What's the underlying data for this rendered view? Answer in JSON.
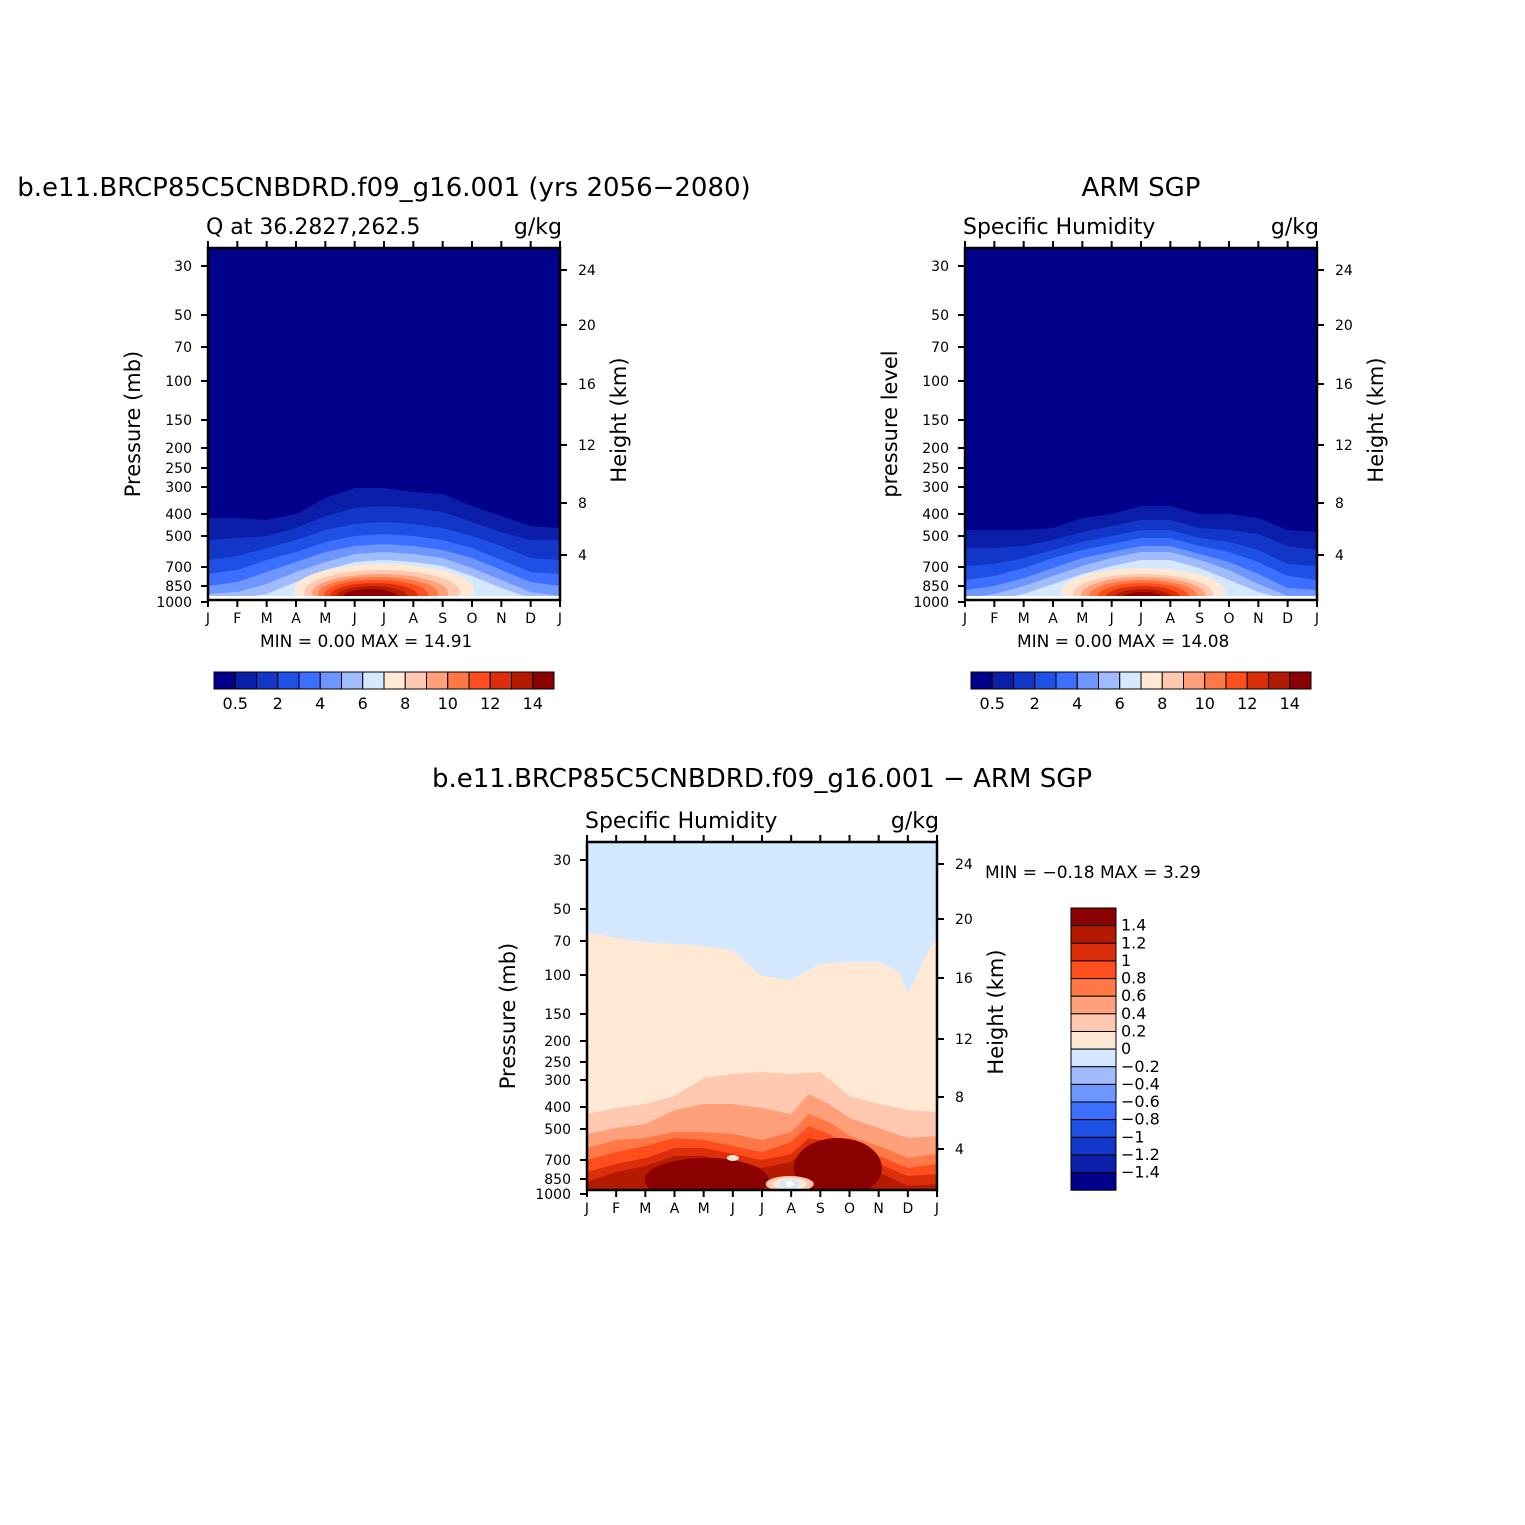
{
  "palette": [
    "#00008b",
    "#0a1eaa",
    "#1236c8",
    "#1e50e6",
    "#3c6eff",
    "#6e96ff",
    "#a0bcff",
    "#d4e8ff",
    "#ffe8d4",
    "#ffc8b0",
    "#ffa07a",
    "#ff7846",
    "#ff4e1e",
    "#dc2e0a",
    "#b41a00",
    "#8b0000"
  ],
  "months": [
    "J",
    "F",
    "M",
    "A",
    "M",
    "J",
    "J",
    "A",
    "S",
    "O",
    "N",
    "D",
    "J"
  ],
  "pressure_ticks": [
    "30",
    "50",
    "70",
    "100",
    "150",
    "200",
    "250",
    "300",
    "400",
    "500",
    "700",
    "850",
    "1000"
  ],
  "height_ticks": [
    "24",
    "20",
    "16",
    "12",
    "8",
    "4"
  ],
  "panels": [
    {
      "id": "model",
      "main_title": "b.e11.BRCP85C5CNBDRD.f09_g16.001 (yrs 2056−2080)",
      "left_string": "Q at 36.2827,262.5",
      "right_string": "g/kg",
      "ylabel": "Pressure (mb)",
      "ylabel_right": "Height (km)",
      "stats": "MIN =    0.00  MAX =    14.91",
      "colorbar_labels": [
        "0.5",
        "2",
        "4",
        "6",
        "8",
        "10",
        "12",
        "14"
      ]
    },
    {
      "id": "obs",
      "main_title": "ARM SGP",
      "left_string": "Specific Humidity",
      "right_string": "g/kg",
      "ylabel": "pressure level",
      "ylabel_right": "Height (km)",
      "stats": "MIN =    0.00  MAX =    14.08",
      "colorbar_labels": [
        "0.5",
        "2",
        "4",
        "6",
        "8",
        "10",
        "12",
        "14"
      ]
    },
    {
      "id": "diff",
      "main_title": "b.e11.BRCP85C5CNBDRD.f09_g16.001 − ARM SGP",
      "left_string": "Specific Humidity",
      "right_string": "g/kg",
      "ylabel": "Pressure (mb)",
      "ylabel_right": "Height (km)",
      "stats": "MIN =   −0.18  MAX =     3.29",
      "colorbar_labels": [
        "1.4",
        "1.2",
        "1",
        "0.8",
        "0.6",
        "0.4",
        "0.2",
        "0",
        "−0.2",
        "−0.4",
        "−0.6",
        "−0.8",
        "−1",
        "−1.2",
        "−1.4"
      ]
    }
  ],
  "chart_data": [
    {
      "type": "heatmap",
      "title": "b.e11.BRCP85C5CNBDRD.f09_g16.001 (yrs 2056−2080)",
      "subtitle": "Q at 36.2827,262.5",
      "units": "g/kg",
      "x": [
        "J",
        "F",
        "M",
        "A",
        "M",
        "J",
        "J",
        "A",
        "S",
        "O",
        "N",
        "D",
        "J"
      ],
      "y_pressure_mb": [
        30,
        50,
        70,
        100,
        150,
        200,
        250,
        300,
        400,
        500,
        700,
        850,
        1000
      ],
      "y_height_km": [
        24,
        20,
        16,
        12,
        8,
        4
      ],
      "contour_levels": [
        0.5,
        1,
        2,
        3,
        4,
        5,
        6,
        7,
        8,
        9,
        10,
        11,
        12,
        13,
        14
      ],
      "min": 0.0,
      "max": 14.91
    },
    {
      "type": "heatmap",
      "title": "ARM SGP",
      "subtitle": "Specific Humidity",
      "units": "g/kg",
      "x": [
        "J",
        "F",
        "M",
        "A",
        "M",
        "J",
        "J",
        "A",
        "S",
        "O",
        "N",
        "D",
        "J"
      ],
      "y_pressure_mb": [
        30,
        50,
        70,
        100,
        150,
        200,
        250,
        300,
        400,
        500,
        700,
        850,
        1000
      ],
      "y_height_km": [
        24,
        20,
        16,
        12,
        8,
        4
      ],
      "contour_levels": [
        0.5,
        1,
        2,
        3,
        4,
        5,
        6,
        7,
        8,
        9,
        10,
        11,
        12,
        13,
        14
      ],
      "min": 0.0,
      "max": 14.08
    },
    {
      "type": "heatmap",
      "title": "b.e11.BRCP85C5CNBDRD.f09_g16.001 − ARM SGP",
      "subtitle": "Specific Humidity",
      "units": "g/kg",
      "x": [
        "J",
        "F",
        "M",
        "A",
        "M",
        "J",
        "J",
        "A",
        "S",
        "O",
        "N",
        "D",
        "J"
      ],
      "y_pressure_mb": [
        30,
        50,
        70,
        100,
        150,
        200,
        250,
        300,
        400,
        500,
        700,
        850,
        1000
      ],
      "y_height_km": [
        24,
        20,
        16,
        12,
        8,
        4
      ],
      "contour_levels": [
        -1.4,
        -1.2,
        -1,
        -0.8,
        -0.6,
        -0.4,
        -0.2,
        0,
        0.2,
        0.4,
        0.6,
        0.8,
        1,
        1.2,
        1.4
      ],
      "min": -0.18,
      "max": 3.29
    }
  ]
}
